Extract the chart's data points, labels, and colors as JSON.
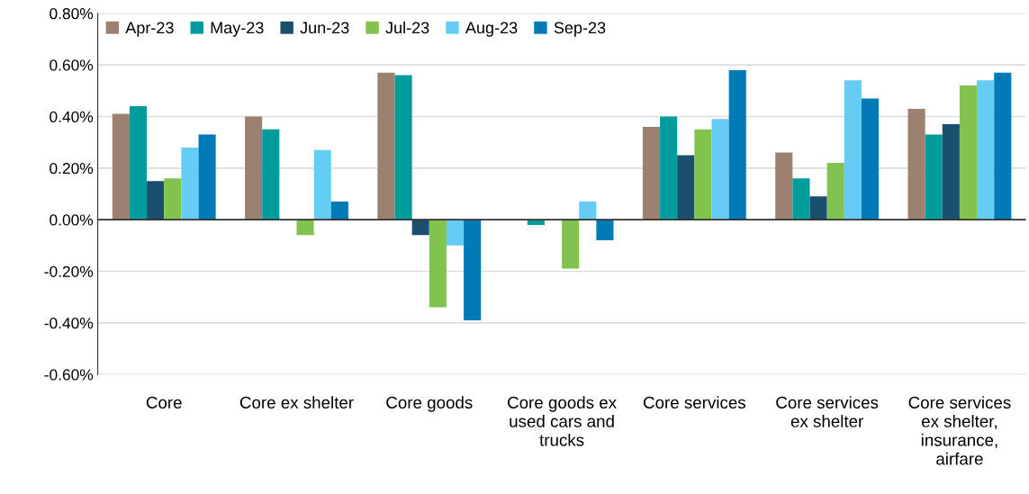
{
  "chart_data": {
    "type": "bar",
    "categories": [
      "Core",
      "Core ex shelter",
      "Core goods",
      "Core goods ex\nused cars and\ntrucks",
      "Core services",
      "Core services\nex shelter",
      "Core services\nex shelter,\ninsurance,\nairfare"
    ],
    "series": [
      {
        "name": "Apr-23",
        "color": "#9c8171",
        "values": [
          0.41,
          0.4,
          0.57,
          0,
          0.36,
          0.26,
          0.43
        ]
      },
      {
        "name": "May-23",
        "color": "#009b9b",
        "values": [
          0.44,
          0.35,
          0.56,
          -0.02,
          0.4,
          0.16,
          0.33
        ]
      },
      {
        "name": "Jun-23",
        "color": "#1b4f6e",
        "values": [
          0.15,
          0,
          -0.06,
          0,
          0.25,
          0.09,
          0.37
        ]
      },
      {
        "name": "Jul-23",
        "color": "#82c350",
        "values": [
          0.16,
          -0.06,
          -0.34,
          -0.19,
          0.35,
          0.22,
          0.52
        ]
      },
      {
        "name": "Aug-23",
        "color": "#65cdf5",
        "values": [
          0.28,
          0.27,
          -0.1,
          0.07,
          0.39,
          0.54,
          0.54
        ]
      },
      {
        "name": "Sep-23",
        "color": "#007bb8",
        "values": [
          0.33,
          0.07,
          -0.39,
          -0.08,
          0.58,
          0.47,
          0.57
        ]
      }
    ],
    "ylim": [
      -0.6,
      0.8
    ],
    "yticks": [
      {
        "value": -0.6,
        "label": "-0.60%"
      },
      {
        "value": -0.4,
        "label": "-0.40%"
      },
      {
        "value": -0.2,
        "label": "-0.20%"
      },
      {
        "value": 0,
        "label": "0.00%"
      },
      {
        "value": 0.2,
        "label": "0.20%"
      },
      {
        "value": 0.4,
        "label": "0.40%"
      },
      {
        "value": 0.6,
        "label": "0.60%"
      },
      {
        "value": 0.8,
        "label": "0.80%"
      }
    ],
    "grid": "y",
    "legend": "top left"
  }
}
